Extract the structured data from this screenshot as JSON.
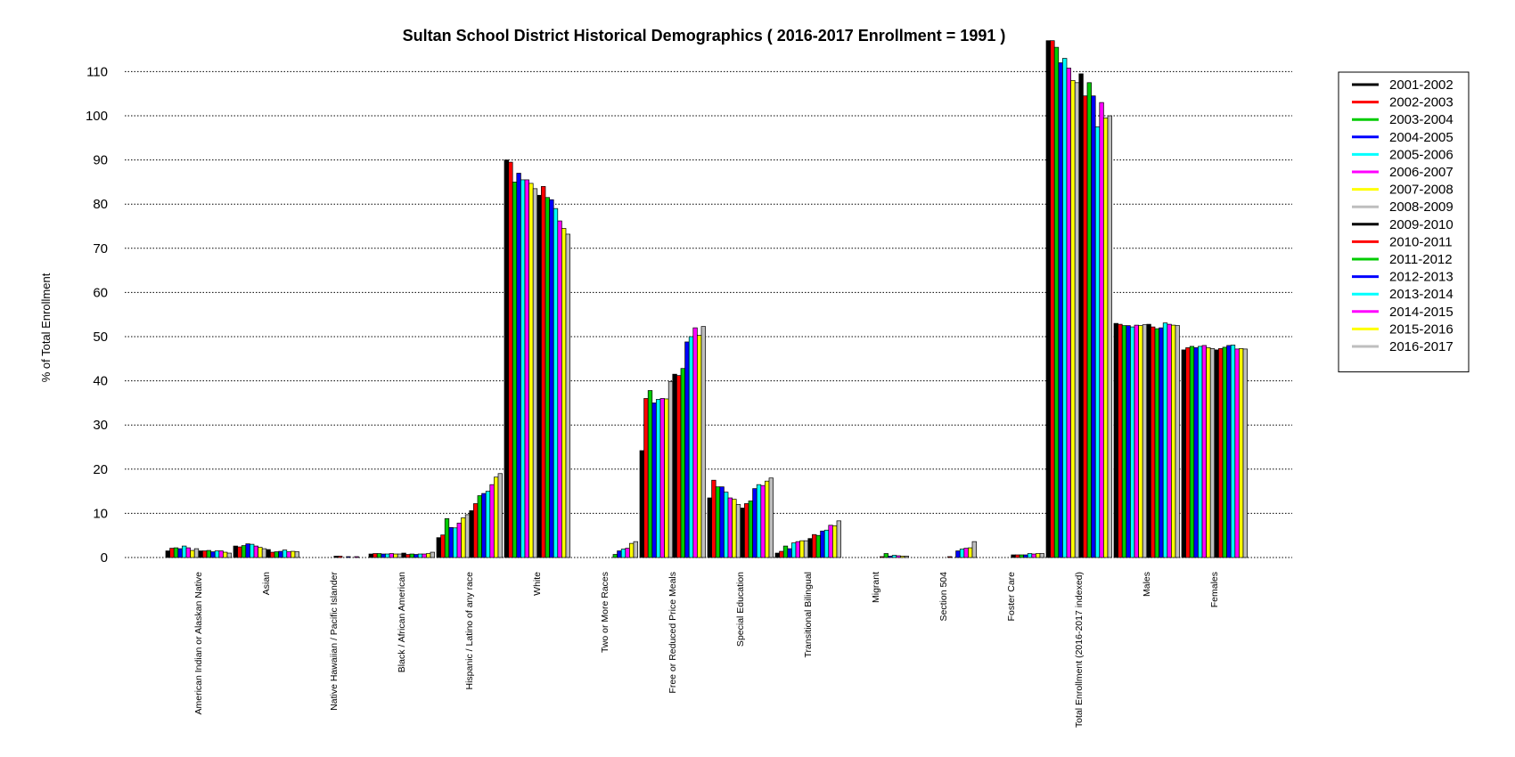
{
  "chart_data": {
    "type": "bar",
    "title": "Sultan School District Historical Demographics  ( 2016-2017 Enrollment =  1991 )",
    "ylabel": "% of Total Enrollment",
    "xlabel": "",
    "ylim": [
      0,
      117
    ],
    "yticks": [
      0,
      10,
      20,
      30,
      40,
      50,
      60,
      70,
      80,
      90,
      100,
      110
    ],
    "grid": true,
    "legend_position": "right",
    "categories": [
      "American Indian or Alaskan Native",
      "Asian",
      "Native Hawaiian / Pacific Islander",
      "Black / African American",
      "Hispanic / Latino of any race",
      "White",
      "Two or More Races",
      "Free or Reduced Price Meals",
      "Special Education",
      "Transitional Bilingual",
      "Migrant",
      "Section 504",
      "Foster Care",
      "Total Enrollment (2016-2017 indexed)",
      "Males",
      "Females"
    ],
    "series": [
      {
        "name": "2001-2002",
        "color": "#000000",
        "values": [
          1.5,
          2.6,
          0,
          0.8,
          4.5,
          90,
          0,
          24.2,
          13.5,
          1.0,
          0,
          0,
          0,
          117.5,
          53.0,
          47.0
        ]
      },
      {
        "name": "2002-2003",
        "color": "#ff0000",
        "values": [
          2.1,
          2.4,
          0,
          0.9,
          5.1,
          89.5,
          0,
          36.0,
          17.5,
          1.4,
          0,
          0,
          0,
          117.5,
          52.8,
          47.5
        ]
      },
      {
        "name": "2003-2004",
        "color": "#00cc00",
        "values": [
          2.2,
          2.7,
          0,
          0.9,
          8.8,
          85.0,
          0,
          37.8,
          16.0,
          2.6,
          0,
          0,
          0,
          115.5,
          52.5,
          47.8
        ]
      },
      {
        "name": "2004-2005",
        "color": "#0000ff",
        "values": [
          2.0,
          3.1,
          0,
          0.8,
          6.8,
          87.0,
          0,
          35.0,
          16.0,
          2.0,
          0,
          0,
          0,
          112.0,
          52.5,
          47.5
        ]
      },
      {
        "name": "2005-2006",
        "color": "#00ffff",
        "values": [
          2.6,
          3.0,
          0,
          0.8,
          6.7,
          85.5,
          0,
          35.8,
          14.8,
          3.3,
          0,
          0,
          0,
          113.0,
          52.2,
          47.8
        ]
      },
      {
        "name": "2006-2007",
        "color": "#ff00ff",
        "values": [
          2.2,
          2.6,
          0,
          0.9,
          7.8,
          85.5,
          0,
          36.0,
          13.5,
          3.6,
          0,
          0,
          0,
          110.8,
          52.6,
          48.0
        ]
      },
      {
        "name": "2007-2008",
        "color": "#ffff00",
        "values": [
          1.6,
          2.3,
          0,
          0.8,
          9.0,
          84.7,
          0,
          35.9,
          13.2,
          3.8,
          0,
          0,
          0,
          108.0,
          52.5,
          47.5
        ]
      },
      {
        "name": "2008-2009",
        "color": "#bebebe",
        "values": [
          2.0,
          2.0,
          0,
          0.8,
          9.7,
          83.5,
          0,
          39.8,
          12.0,
          3.8,
          0,
          0,
          0,
          107.5,
          52.7,
          47.3
        ]
      },
      {
        "name": "2009-2010",
        "color": "#000000",
        "values": [
          1.5,
          1.8,
          0.3,
          1.0,
          10.6,
          82.0,
          0,
          41.5,
          11.2,
          4.3,
          0,
          0,
          0.6,
          109.5,
          52.8,
          47.0
        ]
      },
      {
        "name": "2010-2011",
        "color": "#ff0000",
        "values": [
          1.5,
          1.2,
          0.3,
          0.7,
          12.2,
          84.0,
          0,
          41.2,
          12.2,
          5.2,
          0.2,
          0.2,
          0.6,
          104.5,
          52.2,
          47.3
        ]
      },
      {
        "name": "2011-2012",
        "color": "#00cc00",
        "values": [
          1.6,
          1.3,
          0,
          0.8,
          14.0,
          81.5,
          0.7,
          42.8,
          12.8,
          5.0,
          0.9,
          0,
          0.6,
          107.5,
          51.8,
          47.6
        ]
      },
      {
        "name": "2012-2013",
        "color": "#0000ff",
        "values": [
          1.3,
          1.4,
          0.2,
          0.7,
          14.5,
          81.0,
          1.5,
          48.8,
          15.6,
          6.0,
          0.3,
          1.5,
          0.6,
          104.5,
          52.0,
          48.0
        ]
      },
      {
        "name": "2013-2014",
        "color": "#00ffff",
        "values": [
          1.5,
          1.7,
          0,
          0.8,
          15.0,
          79.0,
          1.9,
          50.0,
          16.5,
          6.2,
          0.5,
          1.9,
          0.9,
          97.5,
          53.1,
          48.1
        ]
      },
      {
        "name": "2014-2015",
        "color": "#ff00ff",
        "values": [
          1.5,
          1.3,
          0.2,
          0.8,
          16.5,
          76.2,
          2.1,
          52.0,
          16.3,
          7.3,
          0.4,
          2.1,
          0.8,
          103.0,
          52.8,
          47.2
        ]
      },
      {
        "name": "2015-2016",
        "color": "#ffff00",
        "values": [
          1.2,
          1.4,
          0,
          0.9,
          18.2,
          74.5,
          3.2,
          50.3,
          17.3,
          7.2,
          0.3,
          2.2,
          0.9,
          99.5,
          52.6,
          47.3
        ]
      },
      {
        "name": "2016-2017",
        "color": "#bebebe",
        "values": [
          1.0,
          1.3,
          0,
          1.2,
          19.0,
          73.2,
          3.6,
          52.3,
          18.0,
          8.3,
          0.3,
          3.6,
          0.9,
          100.0,
          52.5,
          47.2
        ]
      }
    ]
  }
}
